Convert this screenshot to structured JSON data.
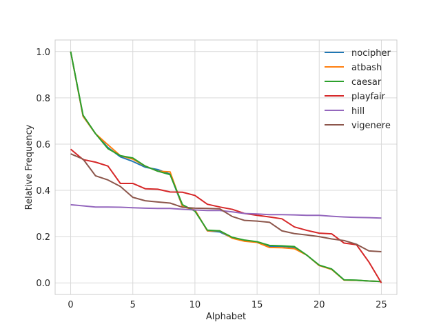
{
  "chart_data": {
    "type": "line",
    "title": "",
    "xlabel": "Alphabet",
    "ylabel": "Relative Frequency",
    "xlim": [
      -1.25,
      26.25
    ],
    "ylim": [
      -0.05,
      1.05
    ],
    "xticks": [
      0,
      5,
      10,
      15,
      20,
      25
    ],
    "yticks": [
      0.0,
      0.2,
      0.4,
      0.6,
      0.8,
      1.0
    ],
    "xtick_labels": [
      "0",
      "5",
      "10",
      "15",
      "20",
      "25"
    ],
    "ytick_labels": [
      "0.0",
      "0.2",
      "0.4",
      "0.6",
      "0.8",
      "1.0"
    ],
    "grid": true,
    "legend_position": "top-right",
    "x": [
      0,
      1,
      2,
      3,
      4,
      5,
      6,
      7,
      8,
      9,
      10,
      11,
      12,
      13,
      14,
      15,
      16,
      17,
      18,
      19,
      20,
      21,
      22,
      23,
      24,
      25
    ],
    "series": [
      {
        "name": "nocipher",
        "color": "#1f77b4",
        "values": [
          1.0,
          0.72,
          0.645,
          0.585,
          0.545,
          0.525,
          0.5,
          0.49,
          0.47,
          0.33,
          0.315,
          0.225,
          0.22,
          0.195,
          0.183,
          0.177,
          0.158,
          0.158,
          0.154,
          0.12,
          0.075,
          0.06,
          0.013,
          0.011,
          0.008,
          0.006
        ]
      },
      {
        "name": "atbash",
        "color": "#ff7f0e",
        "values": [
          1.0,
          0.72,
          0.645,
          0.597,
          0.55,
          0.535,
          0.505,
          0.483,
          0.48,
          0.33,
          0.315,
          0.225,
          0.225,
          0.193,
          0.18,
          0.175,
          0.153,
          0.152,
          0.148,
          0.12,
          0.075,
          0.058,
          0.012,
          0.011,
          0.008,
          0.006
        ]
      },
      {
        "name": "caesar",
        "color": "#2ca02c",
        "values": [
          1.0,
          0.725,
          0.645,
          0.58,
          0.55,
          0.54,
          0.505,
          0.483,
          0.468,
          0.338,
          0.31,
          0.228,
          0.225,
          0.197,
          0.185,
          0.178,
          0.162,
          0.16,
          0.157,
          0.12,
          0.077,
          0.06,
          0.013,
          0.012,
          0.008,
          0.006
        ]
      },
      {
        "name": "playfair",
        "color": "#d62728",
        "values": [
          0.578,
          0.533,
          0.522,
          0.505,
          0.43,
          0.43,
          0.407,
          0.405,
          0.393,
          0.392,
          0.378,
          0.34,
          0.328,
          0.318,
          0.3,
          0.292,
          0.285,
          0.277,
          0.242,
          0.227,
          0.215,
          0.212,
          0.172,
          0.165,
          0.09,
          0.0
        ]
      },
      {
        "name": "hill",
        "color": "#9467bd",
        "values": [
          0.338,
          0.333,
          0.328,
          0.328,
          0.327,
          0.325,
          0.323,
          0.322,
          0.322,
          0.318,
          0.315,
          0.313,
          0.313,
          0.307,
          0.3,
          0.298,
          0.295,
          0.295,
          0.294,
          0.292,
          0.292,
          0.288,
          0.285,
          0.283,
          0.282,
          0.28
        ]
      },
      {
        "name": "vigenere",
        "color": "#8c564b",
        "values": [
          0.558,
          0.535,
          0.463,
          0.445,
          0.417,
          0.37,
          0.355,
          0.35,
          0.345,
          0.327,
          0.323,
          0.322,
          0.32,
          0.287,
          0.27,
          0.267,
          0.262,
          0.225,
          0.213,
          0.207,
          0.2,
          0.19,
          0.183,
          0.167,
          0.138,
          0.135
        ]
      }
    ]
  }
}
